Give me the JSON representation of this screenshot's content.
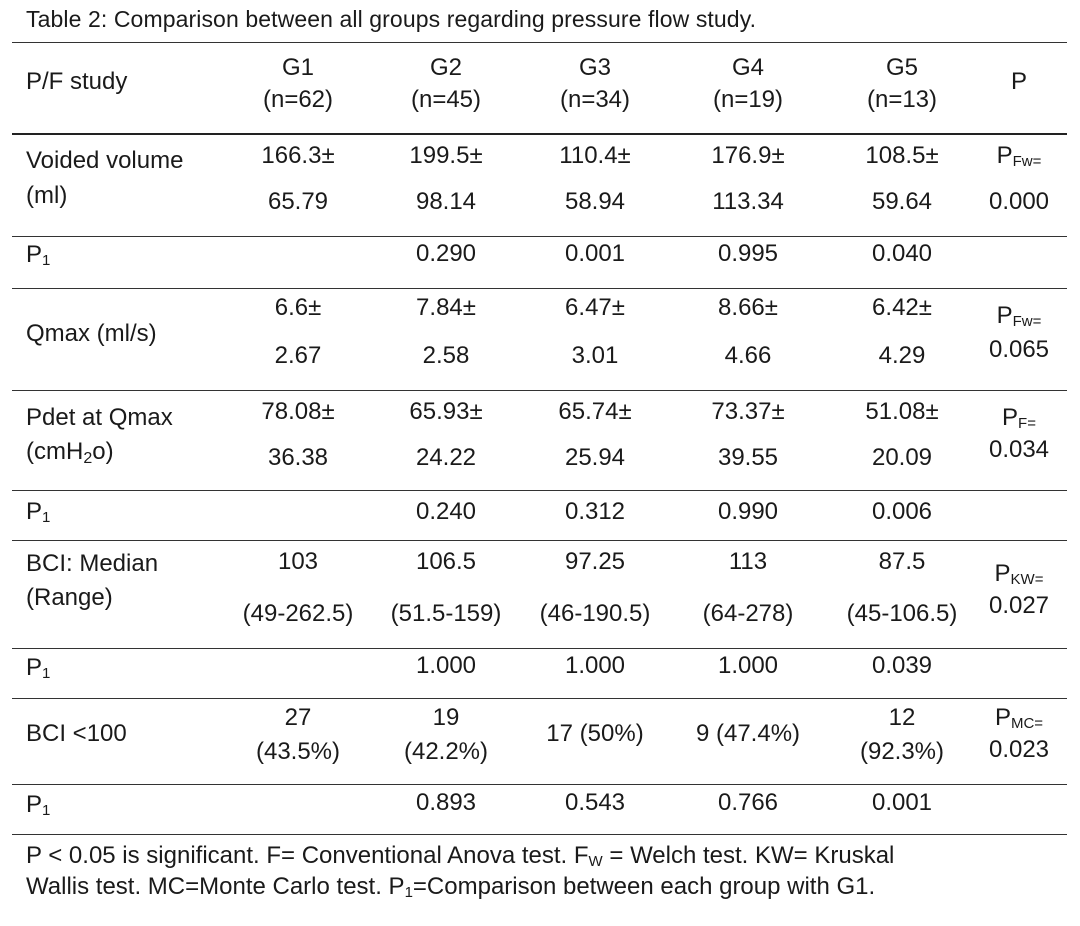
{
  "title": "Table 2: Comparison between all groups regarding pressure flow study.",
  "header": {
    "col0": "P/F study",
    "groups": [
      {
        "name": "G1",
        "n": "(n=62)"
      },
      {
        "name": "G2",
        "n": "(n=45)"
      },
      {
        "name": "G3",
        "n": "(n=34)"
      },
      {
        "name": "G4",
        "n": "(n=19)"
      },
      {
        "name": "G5",
        "n": "(n=13)"
      }
    ],
    "p": "P"
  },
  "rows": {
    "voided": {
      "label1": "Voided volume",
      "label2": "(ml)",
      "top": [
        "166.3±",
        "199.5±",
        "110.4±",
        "176.9±",
        "108.5±"
      ],
      "bottom": [
        "65.79",
        "98.14",
        "58.94",
        "113.34",
        "59.64"
      ],
      "p_prefix": "P",
      "p_sub": "Fw=",
      "p_value": "0.000"
    },
    "p1_a": {
      "label": "P",
      "label_sub": "1",
      "values": [
        "0.290",
        "0.001",
        "0.995",
        "0.040"
      ]
    },
    "qmax": {
      "label": "Qmax (ml/s)",
      "top": [
        "6.6±",
        "7.84±",
        "6.47±",
        "8.66±",
        "6.42±"
      ],
      "bottom": [
        "2.67",
        "2.58",
        "3.01",
        "4.66",
        "4.29"
      ],
      "p_prefix": "P",
      "p_sub": "Fw=",
      "p_value": "0.065"
    },
    "pdet": {
      "label1": "Pdet at Qmax",
      "label2_pre": "(cmH",
      "label2_sub": "2",
      "label2_post": "o)",
      "top": [
        "78.08±",
        "65.93±",
        "65.74±",
        "73.37±",
        "51.08±"
      ],
      "bottom": [
        "36.38",
        "24.22",
        "25.94",
        "39.55",
        "20.09"
      ],
      "p_prefix": "P",
      "p_sub": "F=",
      "p_value": "0.034"
    },
    "p1_b": {
      "label": "P",
      "label_sub": "1",
      "values": [
        "0.240",
        "0.312",
        "0.990",
        "0.006"
      ]
    },
    "bci": {
      "label1": "BCI: Median",
      "label2": "(Range)",
      "top": [
        "103",
        "106.5",
        "97.25",
        "113",
        "87.5"
      ],
      "bottom": [
        "(49-262.5)",
        "(51.5-159)",
        "(46-190.5)",
        "(64-278)",
        "(45-106.5)"
      ],
      "p_prefix": "P",
      "p_sub": "KW=",
      "p_value": "0.027"
    },
    "p1_c": {
      "label": "P",
      "label_sub": "1",
      "values": [
        "1.000",
        "1.000",
        "1.000",
        "0.039"
      ]
    },
    "bci100": {
      "label": "BCI <100",
      "g1": [
        "27",
        "(43.5%)"
      ],
      "g2": [
        "19",
        "(42.2%)"
      ],
      "g3": "17 (50%)",
      "g4": "9 (47.4%)",
      "g5": [
        "12",
        "(92.3%)"
      ],
      "p_prefix": "P",
      "p_sub": "MC=",
      "p_value": "0.023"
    },
    "p1_d": {
      "label": "P",
      "label_sub": "1",
      "values": [
        "0.893",
        "0.543",
        "0.766",
        "0.001"
      ]
    }
  },
  "footnote": {
    "l1_a": "P < 0.05 is significant. F= Conventional Anova test. F",
    "l1_sub": "W",
    "l1_b": " = Welch test. KW= Kruskal",
    "l2_a": "Wallis test. MC=Monte Carlo test. P",
    "l2_sub": "1",
    "l2_b": "=Comparison between each group with G1."
  }
}
